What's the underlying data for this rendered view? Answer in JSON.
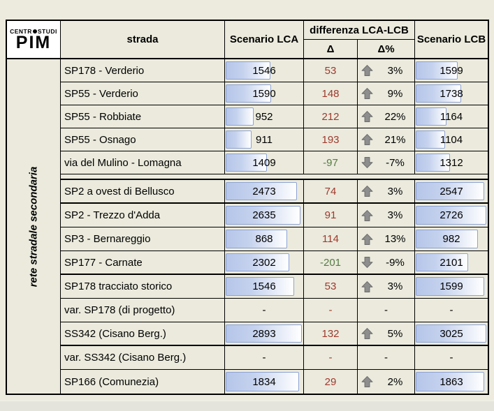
{
  "window": {
    "background": "#ECEBDE"
  },
  "logo": {
    "top_left": "CENTR",
    "top_right": "STUDI",
    "name": "PIM"
  },
  "table": {
    "header": {
      "strada": "strada",
      "scenario_lca": "Scenario LCA",
      "differenza": "differenza LCA-LCB",
      "delta": "Δ",
      "delta_pct": "Δ%",
      "scenario_lcb": "Scenario LCB"
    },
    "side_label": "rete stradale secondaria",
    "colors": {
      "positive_delta": "#9E392C",
      "negative_delta": "#567B43",
      "arrow_gray": "#8E8E8E",
      "arrow_outline": "#6E6E6E",
      "bar_border": "#8DA3D3",
      "bar_fill": "#B6C6E9",
      "grid": "#000000",
      "logo_background": "#FFFFFF"
    },
    "rows": [
      {
        "strada": "SP178 - Verderio",
        "lca": "1546",
        "lca_bar": 60,
        "delta": "53",
        "delta_sign": "positive",
        "arrow": "up",
        "delta_pct": "3%",
        "lcb": "1599",
        "lcb_bar": 61,
        "gap_before": false,
        "thick_bottom": false
      },
      {
        "strada": "SP55 - Verderio",
        "lca": "1590",
        "lca_bar": 61,
        "delta": "148",
        "delta_sign": "positive",
        "arrow": "up",
        "delta_pct": "9%",
        "lcb": "1738",
        "lcb_bar": 65,
        "gap_before": false,
        "thick_bottom": false
      },
      {
        "strada": "SP55 - Robbiate",
        "lca": "952",
        "lca_bar": 38,
        "delta": "212",
        "delta_sign": "positive",
        "arrow": "up",
        "delta_pct": "22%",
        "lcb": "1164",
        "lcb_bar": 45,
        "gap_before": false,
        "thick_bottom": false
      },
      {
        "strada": "SP55 - Osnago",
        "lca": "911",
        "lca_bar": 36,
        "delta": "193",
        "delta_sign": "positive",
        "arrow": "up",
        "delta_pct": "21%",
        "lcb": "1104",
        "lcb_bar": 43,
        "gap_before": false,
        "thick_bottom": false
      },
      {
        "strada": "via del Mulino - Lomagna",
        "lca": "1409",
        "lca_bar": 55,
        "delta": "-97",
        "delta_sign": "negative",
        "arrow": "down",
        "delta_pct": "-7%",
        "lcb": "1312",
        "lcb_bar": 50,
        "gap_before": false,
        "thick_bottom": false
      },
      {
        "strada": "SP2 a ovest di Bellusco",
        "lca": "2473",
        "lca_bar": 94,
        "delta": "74",
        "delta_sign": "positive",
        "arrow": "up",
        "delta_pct": "3%",
        "lcb": "2547",
        "lcb_bar": 97,
        "gap_before": true,
        "thick_bottom": true
      },
      {
        "strada": "SP2 - Trezzo d'Adda",
        "lca": "2635",
        "lca_bar": 98,
        "delta": "91",
        "delta_sign": "positive",
        "arrow": "up",
        "delta_pct": "3%",
        "lcb": "2726",
        "lcb_bar": 100,
        "gap_before": false,
        "thick_bottom": false
      },
      {
        "strada": "SP3 - Bernareggio",
        "lca": "868",
        "lca_bar": 81,
        "delta": "114",
        "delta_sign": "positive",
        "arrow": "up",
        "delta_pct": "13%",
        "lcb": "982",
        "lcb_bar": 88,
        "gap_before": false,
        "thick_bottom": false
      },
      {
        "strada": "SP177 - Carnate",
        "lca": "2302",
        "lca_bar": 84,
        "delta": "-201",
        "delta_sign": "negative",
        "arrow": "down",
        "delta_pct": "-9%",
        "lcb": "2101",
        "lcb_bar": 75,
        "gap_before": false,
        "thick_bottom": true
      },
      {
        "strada": "SP178 tracciato storico",
        "lca": "1546",
        "lca_bar": 90,
        "delta": "53",
        "delta_sign": "positive",
        "arrow": "up",
        "delta_pct": "3%",
        "lcb": "1599",
        "lcb_bar": 97,
        "gap_before": false,
        "thick_bottom": false
      },
      {
        "strada": "var. SP178 (di progetto)",
        "lca": "-",
        "lca_bar": null,
        "delta": "-",
        "delta_sign": "positive",
        "arrow": null,
        "delta_pct": "-",
        "lcb": "-",
        "lcb_bar": null,
        "gap_before": false,
        "thick_bottom": false
      },
      {
        "strada": "SS342 (Cisano Berg.)",
        "lca": "2893",
        "lca_bar": 100,
        "delta": "132",
        "delta_sign": "positive",
        "arrow": "up",
        "delta_pct": "5%",
        "lcb": "3025",
        "lcb_bar": 100,
        "gap_before": false,
        "thick_bottom": true
      },
      {
        "strada": "var. SS342 (Cisano Berg.)",
        "lca": "-",
        "lca_bar": null,
        "delta": "-",
        "delta_sign": "positive",
        "arrow": null,
        "delta_pct": "-",
        "lcb": "-",
        "lcb_bar": null,
        "gap_before": false,
        "thick_bottom": false
      },
      {
        "strada": "SP166 (Comunezia)",
        "lca": "1834",
        "lca_bar": 96,
        "delta": "29",
        "delta_sign": "positive",
        "arrow": "up",
        "delta_pct": "2%",
        "lcb": "1863",
        "lcb_bar": 97,
        "gap_before": false,
        "thick_bottom": false
      }
    ]
  }
}
